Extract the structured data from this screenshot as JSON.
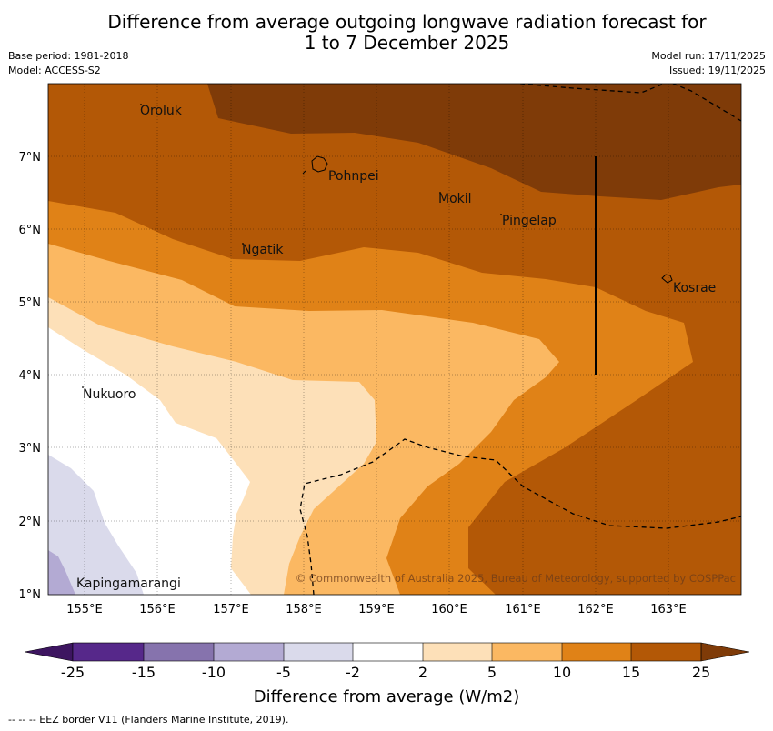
{
  "title_line1": "Difference from average outgoing longwave radiation forecast for",
  "title_line2": "1 to 7 December 2025",
  "base_period": "Base period: 1981-2018",
  "model": "Model: ACCESS-S2",
  "model_run": "Model run: 17/11/2025",
  "issued": "Issued: 19/11/2025",
  "x_ticks": [
    "155°E",
    "156°E",
    "157°E",
    "158°E",
    "159°E",
    "160°E",
    "161°E",
    "162°E",
    "163°E"
  ],
  "y_ticks": [
    "7°N",
    "6°N",
    "5°N",
    "4°N",
    "3°N",
    "2°N",
    "1°N"
  ],
  "places": {
    "oroluk": "Oroluk",
    "pohnpei": "Pohnpei",
    "mokil": "Mokil",
    "pingelap": "Pingelap",
    "ngatik": "Ngatik",
    "kosrae": "Kosrae",
    "nukuoro": "Nukuoro",
    "kapingamarangi": "Kapingamarangi"
  },
  "copyright": "© Commonwealth of Australia 2025, Bureau of Meteorology, supported by COSPPac",
  "legend": {
    "title": "Difference from average (W/m2)",
    "ticks": [
      "-25",
      "-15",
      "-10",
      "-5",
      "-2",
      "2",
      "5",
      "10",
      "15",
      "25"
    ],
    "colors": [
      "#3d1560",
      "#56288a",
      "#8673ad",
      "#b3aad3",
      "#dadaeb",
      "#ffffff",
      "#fde0b8",
      "#fbb862",
      "#e08217",
      "#b35806",
      "#7f3b08"
    ]
  },
  "footnote": "--  --  -- EEZ border V11 (Flanders Marine Institute, 2019)."
}
